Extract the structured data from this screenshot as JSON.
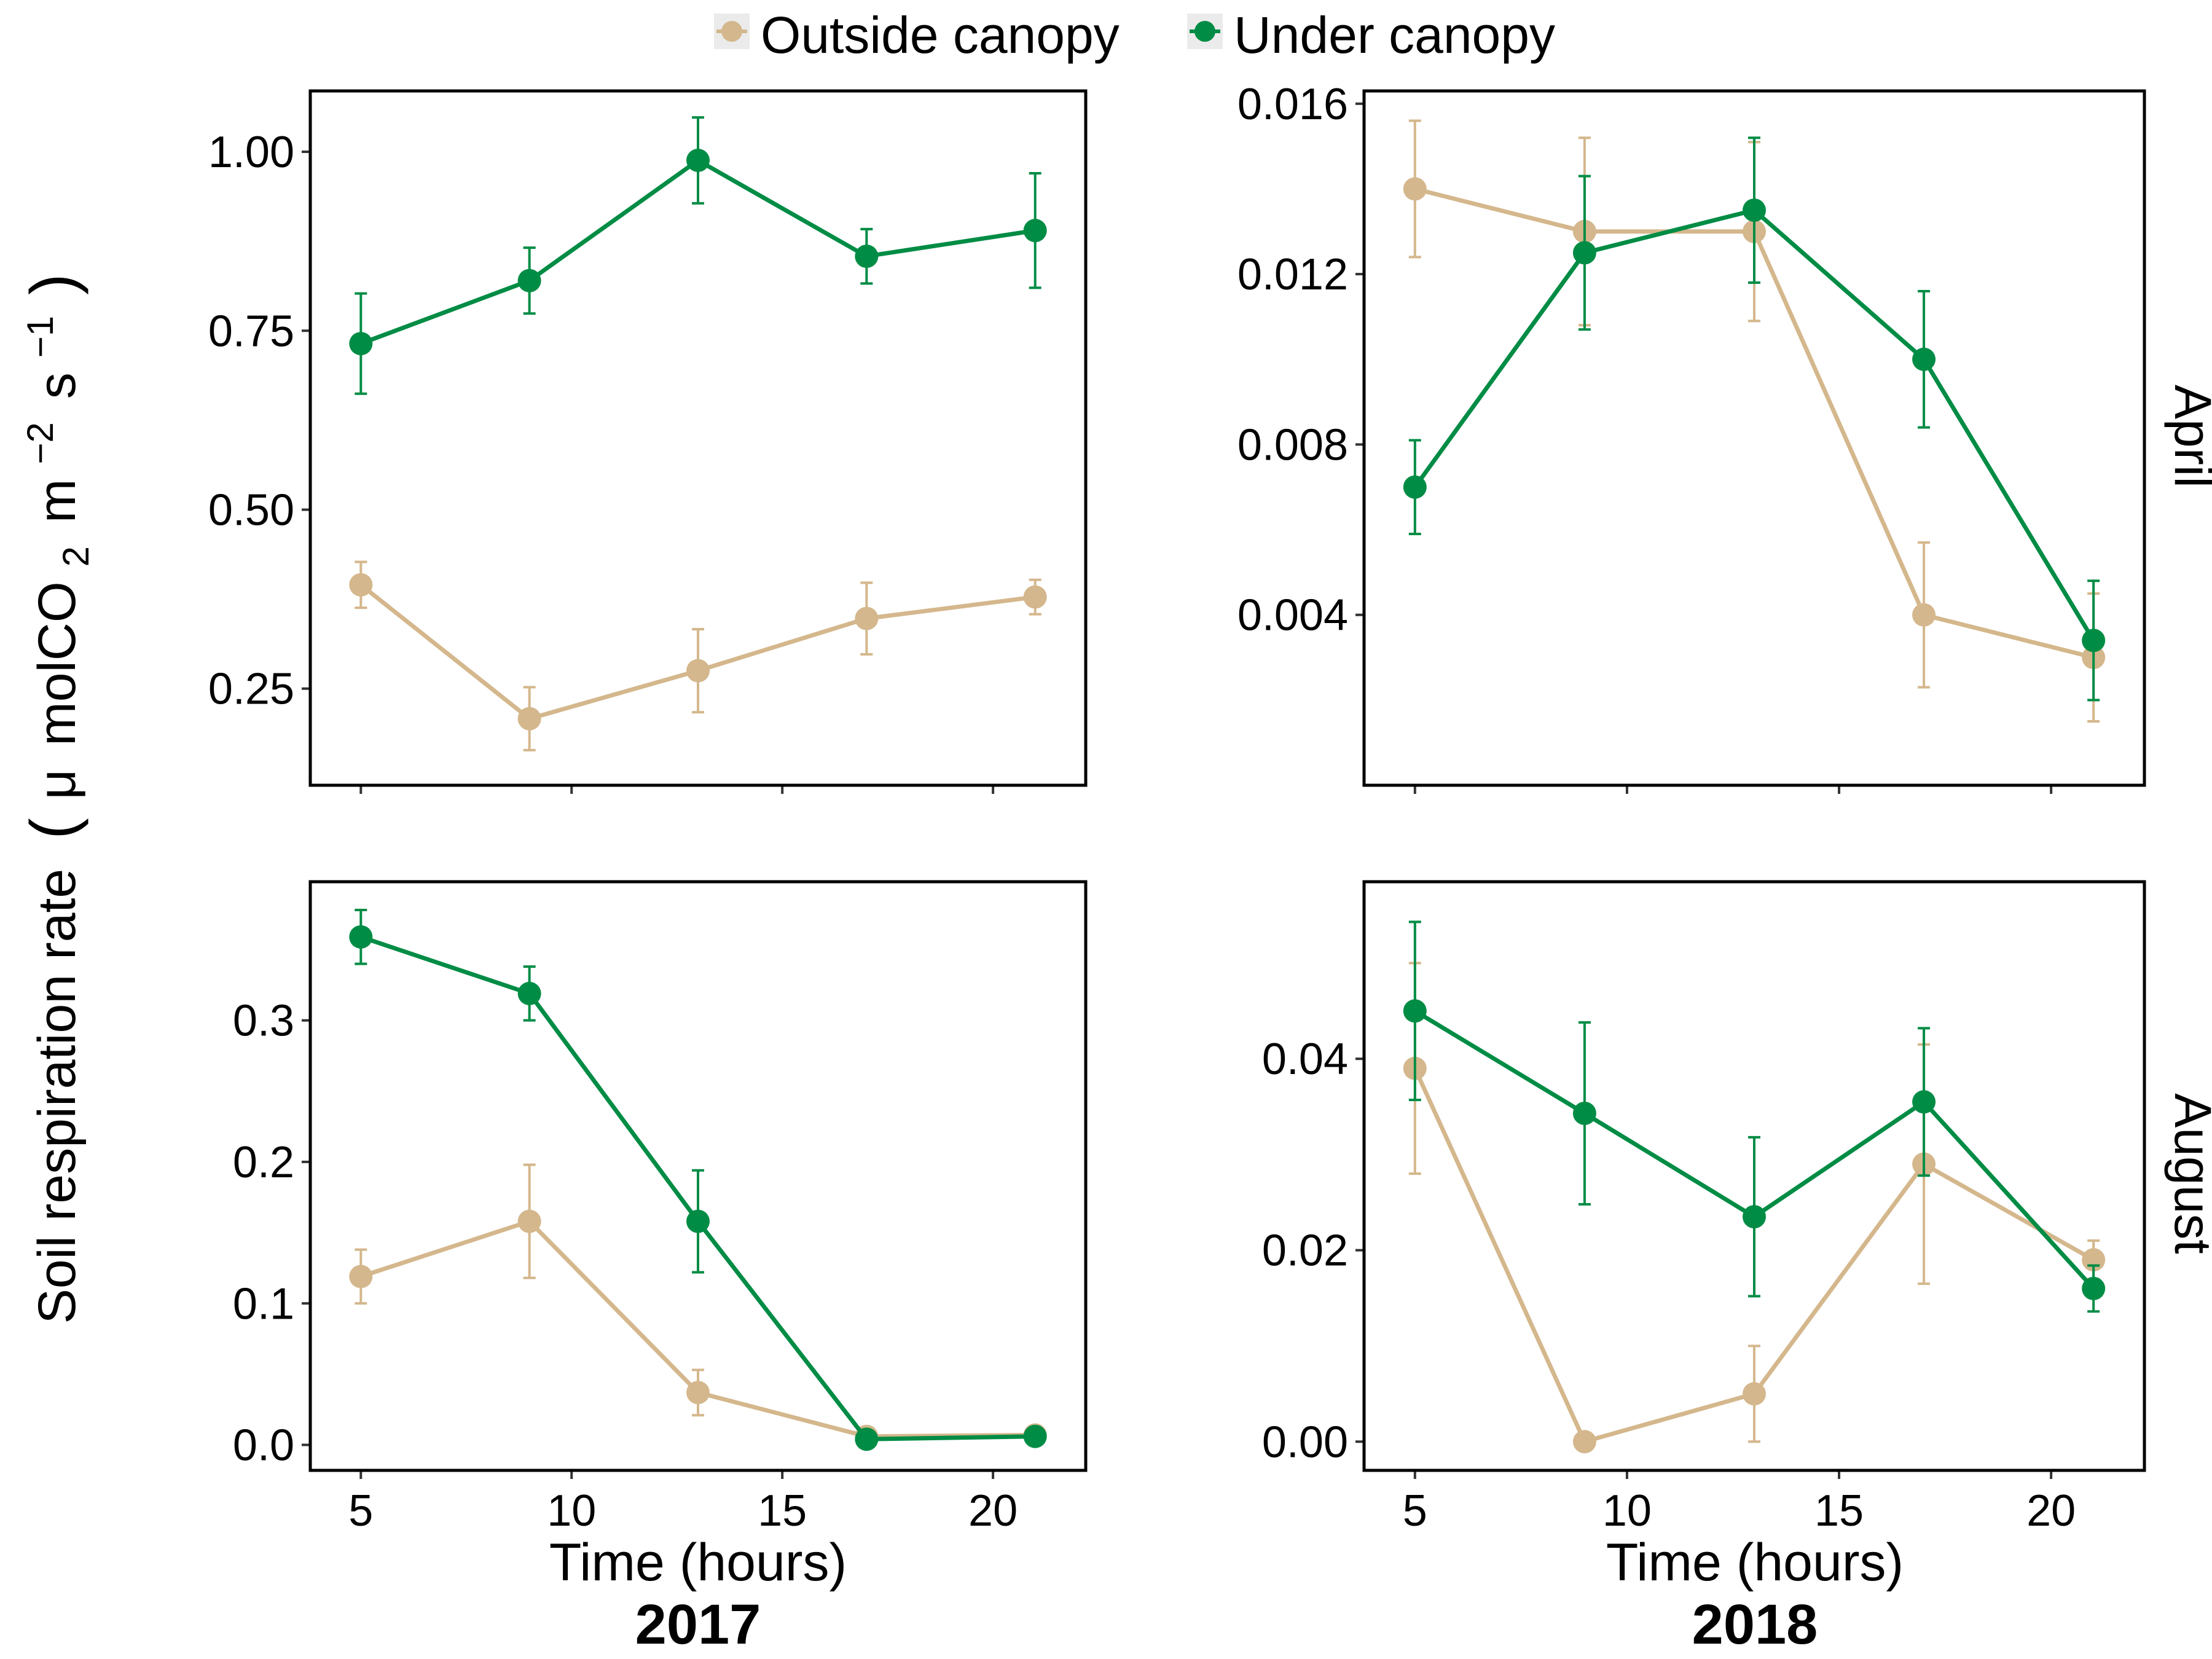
{
  "legend": {
    "position": "top",
    "items": [
      {
        "label": "Outside canopy",
        "color": "#d4b78c"
      },
      {
        "label": "Under canopy",
        "color": "#008c45"
      }
    ]
  },
  "y_axis_title": {
    "main": "Soil respiration rate",
    "unit_prefix": "(",
    "mu": "μ",
    "unit_mol": "molCO",
    "sub2": "2",
    "unit_m": "m",
    "sup_m": "−2",
    "unit_s": "s",
    "sup_s": "−1",
    "unit_suffix": ")"
  },
  "x_axis_title": "Time (hours)",
  "column_labels": [
    "2017",
    "2018"
  ],
  "row_labels": [
    "April",
    "August"
  ],
  "colors": {
    "outside": "#d4b78c",
    "under": "#008c45"
  },
  "chart_data": [
    {
      "type": "line",
      "year": "2017",
      "month": "April",
      "x": [
        5,
        9,
        13,
        17,
        21
      ],
      "xlim": [
        3.8,
        22.2
      ],
      "xticks": [
        5,
        10,
        15,
        20
      ],
      "ylim": [
        0.115,
        1.085
      ],
      "yticks": [
        0.25,
        0.5,
        0.75,
        1.0
      ],
      "ytick_labels": [
        "0.25",
        "0.50",
        "0.75",
        "1.00"
      ],
      "series": [
        {
          "name": "Outside canopy",
          "values": [
            0.395,
            0.208,
            0.275,
            0.348,
            0.378
          ],
          "err": [
            0.032,
            0.044,
            0.058,
            0.05,
            0.024
          ]
        },
        {
          "name": "Under canopy",
          "values": [
            0.732,
            0.82,
            0.988,
            0.854,
            0.89
          ],
          "err": [
            0.07,
            0.046,
            0.06,
            0.038,
            0.08
          ]
        }
      ]
    },
    {
      "type": "line",
      "year": "2018",
      "month": "April",
      "x": [
        5,
        9,
        13,
        17,
        21
      ],
      "xlim": [
        3.8,
        22.2
      ],
      "xticks": [
        5,
        10,
        15,
        20
      ],
      "ylim": [
        0.0,
        0.0163
      ],
      "yticks": [
        0.004,
        0.008,
        0.012,
        0.016
      ],
      "ytick_labels": [
        "0.004",
        "0.008",
        "0.012",
        "0.016"
      ],
      "series": [
        {
          "name": "Outside canopy",
          "values": [
            0.014,
            0.013,
            0.013,
            0.004,
            0.003
          ],
          "err": [
            0.0016,
            0.0022,
            0.0021,
            0.0017,
            0.0015
          ]
        },
        {
          "name": "Under canopy",
          "values": [
            0.007,
            0.0125,
            0.0135,
            0.01,
            0.0034
          ],
          "err": [
            0.0011,
            0.0018,
            0.0017,
            0.0016,
            0.0014
          ]
        }
      ]
    },
    {
      "type": "line",
      "year": "2017",
      "month": "August",
      "x": [
        5,
        9,
        13,
        17,
        21
      ],
      "xlim": [
        3.8,
        22.2
      ],
      "xticks": [
        5,
        10,
        15,
        20
      ],
      "ylim": [
        -0.018,
        0.398
      ],
      "yticks": [
        0.0,
        0.1,
        0.2,
        0.3
      ],
      "ytick_labels": [
        "0.0",
        "0.1",
        "0.2",
        "0.3"
      ],
      "series": [
        {
          "name": "Outside canopy",
          "values": [
            0.119,
            0.158,
            0.037,
            0.006,
            0.007
          ],
          "err": [
            0.019,
            0.04,
            0.016,
            0.003,
            0.003
          ]
        },
        {
          "name": "Under canopy",
          "values": [
            0.359,
            0.319,
            0.158,
            0.004,
            0.006
          ],
          "err": [
            0.019,
            0.019,
            0.036,
            0.002,
            0.002
          ]
        }
      ]
    },
    {
      "type": "line",
      "year": "2018",
      "month": "August",
      "x": [
        5,
        9,
        13,
        17,
        21
      ],
      "xlim": [
        3.8,
        22.2
      ],
      "xticks": [
        5,
        10,
        15,
        20
      ],
      "ylim": [
        -0.003,
        0.0585
      ],
      "yticks": [
        0.0,
        0.02,
        0.04
      ],
      "ytick_labels": [
        "0.00",
        "0.02",
        "0.04"
      ],
      "series": [
        {
          "name": "Outside canopy",
          "values": [
            0.039,
            0.0,
            0.005,
            0.029,
            0.019
          ],
          "err": [
            0.011,
            0.0,
            0.005,
            0.0125,
            0.002
          ]
        },
        {
          "name": "Under canopy",
          "values": [
            0.045,
            0.0343,
            0.0235,
            0.0355,
            0.016
          ],
          "err": [
            0.0093,
            0.0095,
            0.0083,
            0.0077,
            0.0024
          ]
        }
      ]
    }
  ]
}
